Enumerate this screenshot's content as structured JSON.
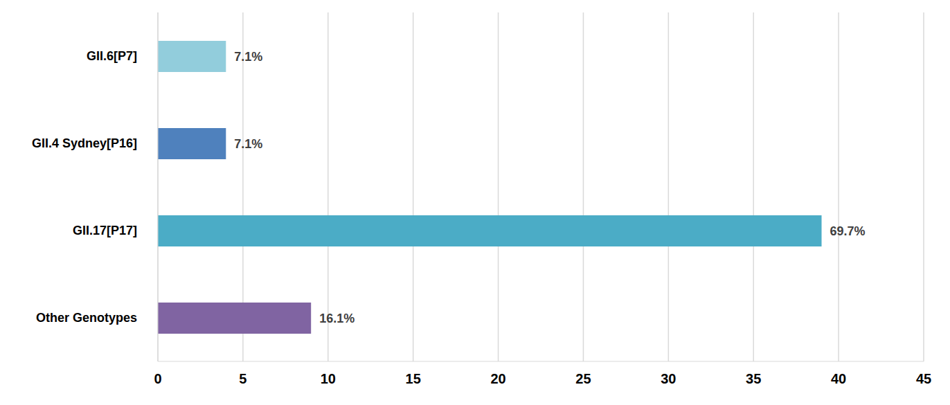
{
  "chart_data": {
    "type": "bar",
    "orientation": "horizontal",
    "categories": [
      "GII.6[P7]",
      "GII.4 Sydney[P16]",
      "GII.17[P17]",
      "Other Genotypes"
    ],
    "values": [
      4,
      4,
      39,
      9
    ],
    "annotations": [
      "7.1%",
      "7.1%",
      "69.7%",
      "16.1%"
    ],
    "colors": [
      "#92cddc",
      "#4f81bd",
      "#4bacc6",
      "#8064a2"
    ],
    "xlim": [
      0,
      45
    ],
    "xticks": [
      0,
      5,
      10,
      15,
      20,
      25,
      30,
      35,
      40,
      45
    ],
    "grid": true
  }
}
